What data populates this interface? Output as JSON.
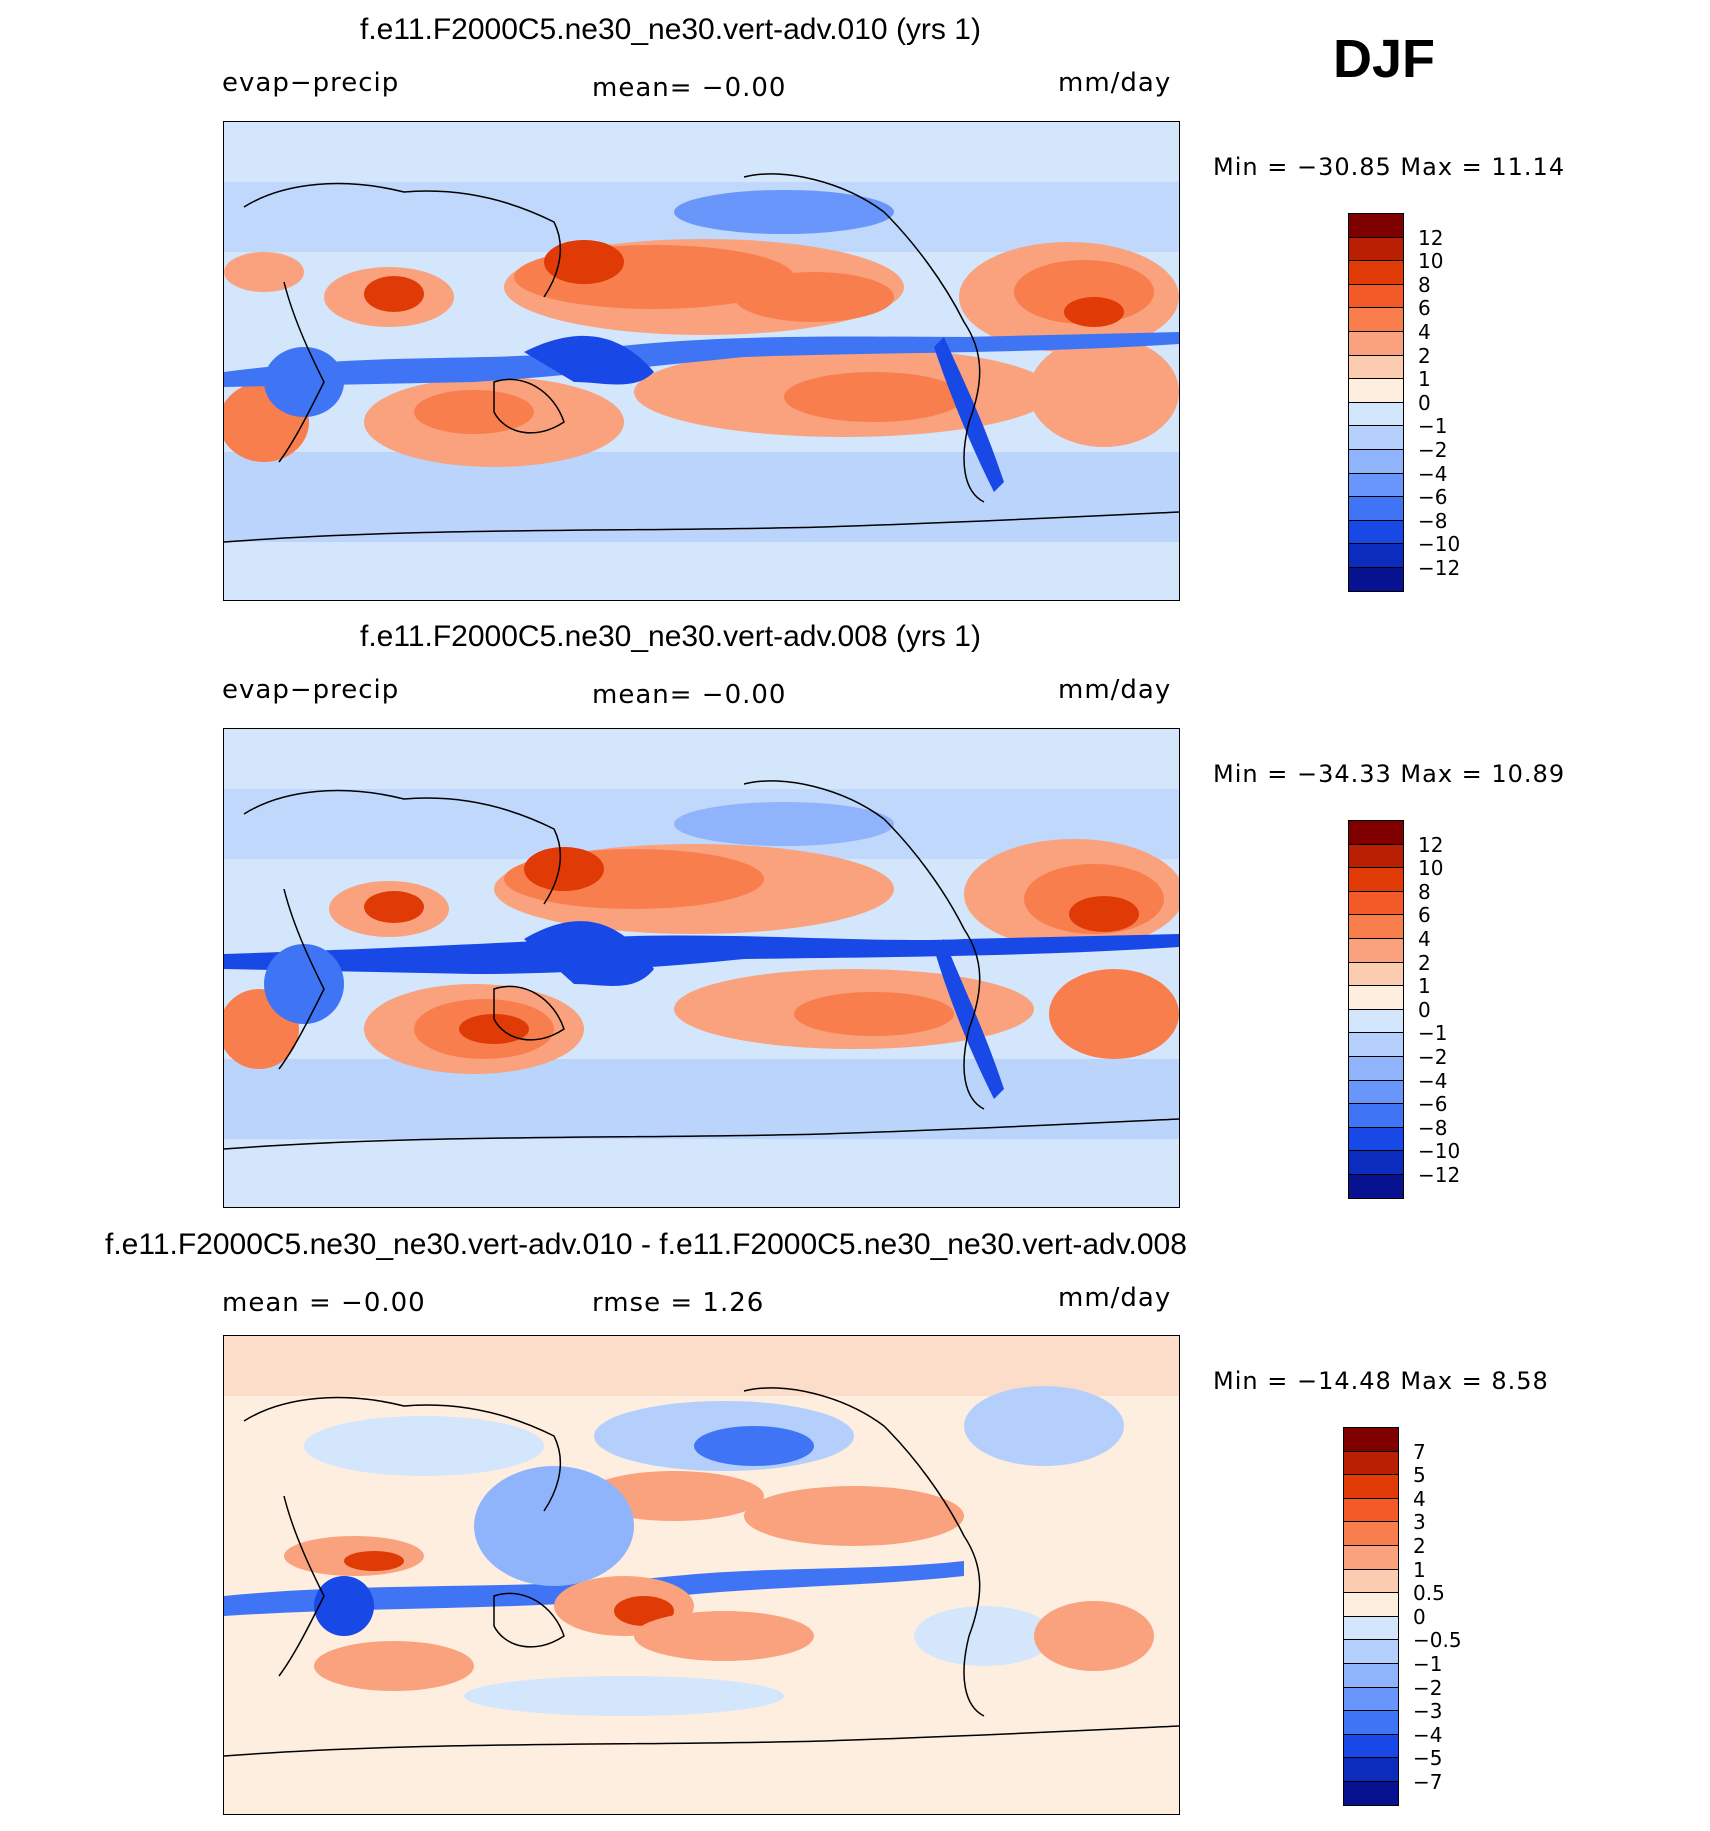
{
  "season": "DJF",
  "panels": [
    {
      "title": "f.e11.F2000C5.ne30_ne30.vert-adv.010 (yrs 1)",
      "left_label": "evap−precip",
      "center_label": "mean=   −0.00",
      "units": "mm/day",
      "min_max": "Min  =  −30.85  Max  =     11.14",
      "colorbar": {
        "labels": [
          "12",
          "10",
          "8",
          "6",
          "4",
          "2",
          "1",
          "0",
          "−1",
          "−2",
          "−4",
          "−6",
          "−8",
          "−10",
          "−12"
        ],
        "colors": [
          "#800000",
          "#b81f03",
          "#e03a06",
          "#f45a27",
          "#f97e4d",
          "#f9a27d",
          "#fcccb1",
          "#fdeee0",
          "#d3e6fb",
          "#b4cffb",
          "#90b4fb",
          "#6896fa",
          "#3f75f4",
          "#1848e6",
          "#0b2cbc",
          "#06128f"
        ]
      }
    },
    {
      "title": "f.e11.F2000C5.ne30_ne30.vert-adv.008 (yrs 1)",
      "left_label": "evap−precip",
      "center_label": "mean=   −0.00",
      "units": "mm/day",
      "min_max": "Min  =  −34.33  Max  =     10.89",
      "colorbar": {
        "labels": [
          "12",
          "10",
          "8",
          "6",
          "4",
          "2",
          "1",
          "0",
          "−1",
          "−2",
          "−4",
          "−6",
          "−8",
          "−10",
          "−12"
        ],
        "colors": [
          "#800000",
          "#b81f03",
          "#e03a06",
          "#f45a27",
          "#f97e4d",
          "#f9a27d",
          "#fcccb1",
          "#fdeee0",
          "#d3e6fb",
          "#b4cffb",
          "#90b4fb",
          "#6896fa",
          "#3f75f4",
          "#1848e6",
          "#0b2cbc",
          "#06128f"
        ]
      }
    },
    {
      "title": "f.e11.F2000C5.ne30_ne30.vert-adv.010 - f.e11.F2000C5.ne30_ne30.vert-adv.008",
      "left_label": "mean  =    −0.00",
      "center_label": "rmse  =     1.26",
      "units": "mm/day",
      "min_max": "Min  =  −14.48  Max  =     8.58",
      "colorbar": {
        "labels": [
          "7",
          "5",
          "4",
          "3",
          "2",
          "1",
          "0.5",
          "0",
          "−0.5",
          "−1",
          "−2",
          "−3",
          "−4",
          "−5",
          "−7"
        ],
        "colors": [
          "#800000",
          "#b81f03",
          "#e03a06",
          "#f45a27",
          "#f97e4d",
          "#f9a27d",
          "#fcccb1",
          "#fdeee0",
          "#d3e6fb",
          "#b4cffb",
          "#90b4fb",
          "#6896fa",
          "#3f75f4",
          "#1848e6",
          "#0b2cbc",
          "#06128f"
        ]
      }
    }
  ]
}
